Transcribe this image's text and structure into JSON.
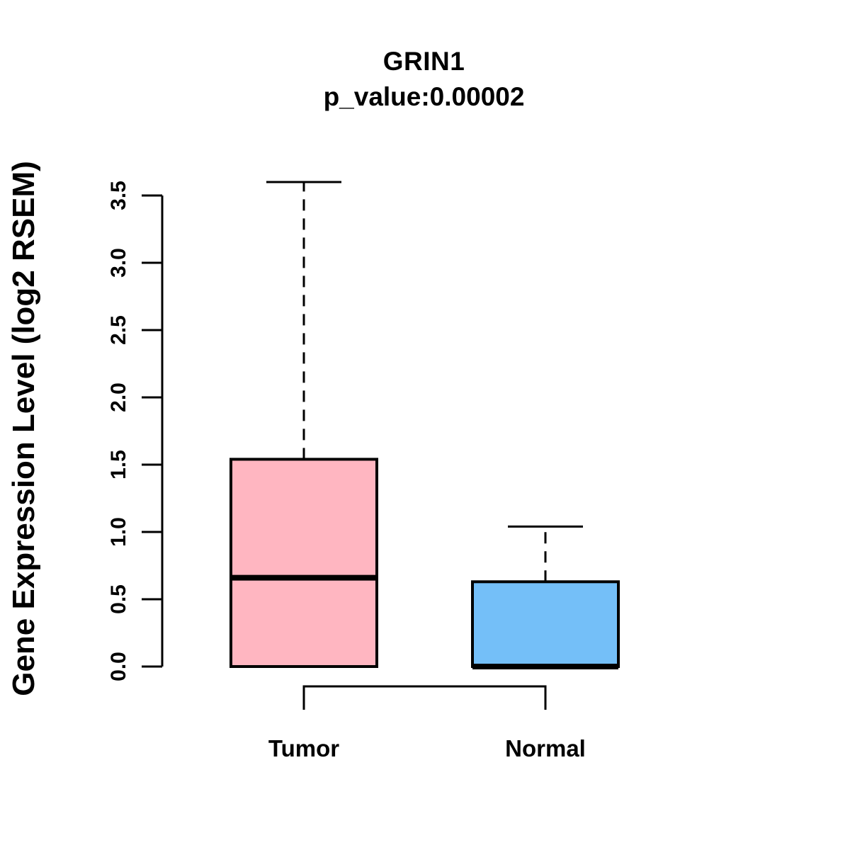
{
  "chart_data": {
    "type": "boxplot",
    "title": "GRIN1",
    "subtitle": "p_value:0.00002",
    "p_value": 2e-05,
    "ylabel": "Gene Expression Level (log2 RSEM)",
    "yticks": [
      "0.0",
      "0.5",
      "1.0",
      "1.5",
      "2.0",
      "2.5",
      "3.0",
      "3.5"
    ],
    "ylim": [
      0.0,
      3.6
    ],
    "grid": false,
    "categories": [
      "Tumor",
      "Normal"
    ],
    "series": [
      {
        "name": "Tumor",
        "color": "#FFB6C1",
        "whisker_low": 0.0,
        "q1": 0.0,
        "median": 0.66,
        "q3": 1.54,
        "whisker_high": 3.6
      },
      {
        "name": "Normal",
        "color": "#74BFF8",
        "whisker_low": 0.0,
        "q1": 0.0,
        "median": 0.0,
        "q3": 0.63,
        "whisker_high": 1.04
      }
    ],
    "comparison_bracket": {
      "between": [
        "Tumor",
        "Normal"
      ]
    },
    "colors": {
      "axis": "#000000",
      "text": "#000000",
      "tumor_fill": "#FFB6C1",
      "normal_fill": "#74BFF8"
    }
  }
}
